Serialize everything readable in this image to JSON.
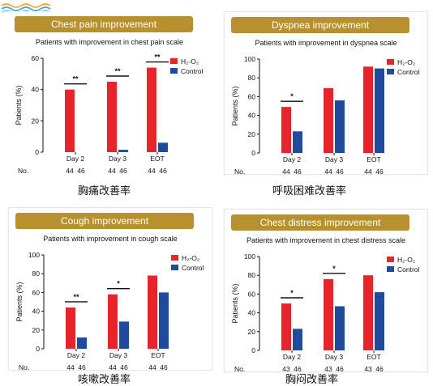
{
  "colors": {
    "h2o2": "#e8232a",
    "control": "#1f4b9e",
    "banner": "#b8902e"
  },
  "chart_data": [
    {
      "type": "bar",
      "title": "Chest pain improvement",
      "subtitle": "Patients with improvement in chest pain scale",
      "ylabel": "Patients (%)",
      "ylim": [
        0,
        60
      ],
      "yticks": [
        0,
        20,
        40,
        60
      ],
      "categories": [
        "Day 2",
        "Day 3",
        "EOT"
      ],
      "series": [
        {
          "name": "H₂-O₂",
          "values": [
            40,
            45,
            54
          ]
        },
        {
          "name": "Control",
          "values": [
            0,
            1.5,
            6
          ]
        }
      ],
      "significance": [
        "**",
        "**",
        "**"
      ],
      "n_label": "No.",
      "n_values": [
        [
          "44",
          "46"
        ],
        [
          "44",
          "46"
        ],
        [
          "44",
          "46"
        ]
      ],
      "caption": "胸痛改善率"
    },
    {
      "type": "bar",
      "title": "Dyspnea improvement",
      "subtitle": "Patients with improvement in dyspnea scale",
      "ylabel": "Patients (%)",
      "ylim": [
        0,
        100
      ],
      "yticks": [
        0,
        20,
        40,
        60,
        80,
        100
      ],
      "categories": [
        "Day 2",
        "Day 3",
        "EOT"
      ],
      "series": [
        {
          "name": "H₂-O₂",
          "values": [
            49,
            69,
            92
          ]
        },
        {
          "name": "Control",
          "values": [
            23,
            56,
            90
          ]
        }
      ],
      "significance": [
        "*",
        "",
        ""
      ],
      "n_label": "No.",
      "n_values": [
        [
          "44",
          "46"
        ],
        [
          "44",
          "46"
        ],
        [
          "44",
          "46"
        ]
      ],
      "caption": "呼吸困难改善率"
    },
    {
      "type": "bar",
      "title": "Cough improvement",
      "subtitle": "Patients with improvement in cough scale",
      "ylabel": "Patients (%)",
      "ylim": [
        0,
        100
      ],
      "yticks": [
        0,
        20,
        40,
        60,
        80,
        100
      ],
      "categories": [
        "Day 2",
        "Day 3",
        "EOT"
      ],
      "series": [
        {
          "name": "H₂-O₂",
          "values": [
            44,
            58,
            78
          ]
        },
        {
          "name": "Control",
          "values": [
            12,
            29,
            60
          ]
        }
      ],
      "significance": [
        "**",
        "*",
        ""
      ],
      "n_label": "No.",
      "n_values": [
        [
          "44",
          "46"
        ],
        [
          "44",
          "46"
        ],
        [
          "44",
          "46"
        ]
      ],
      "caption": "咳嗽改善率"
    },
    {
      "type": "bar",
      "title": "Chest distress improvement",
      "subtitle": "Patients with improvement in chest distress scale",
      "ylabel": "Patients (%)",
      "ylim": [
        0,
        100
      ],
      "yticks": [
        0,
        20,
        40,
        60,
        80,
        100
      ],
      "categories": [
        "Day 2",
        "Day 3",
        "EOT"
      ],
      "series": [
        {
          "name": "H₂-O₂",
          "values": [
            50,
            76,
            80
          ]
        },
        {
          "name": "Control",
          "values": [
            23,
            47,
            62
          ]
        }
      ],
      "significance": [
        "*",
        "*",
        ""
      ],
      "n_label": "No.",
      "n_values": [
        [
          "43",
          "46"
        ],
        [
          "43",
          "46"
        ],
        [
          "43",
          "46"
        ]
      ],
      "caption": "胸闷改善率"
    }
  ]
}
